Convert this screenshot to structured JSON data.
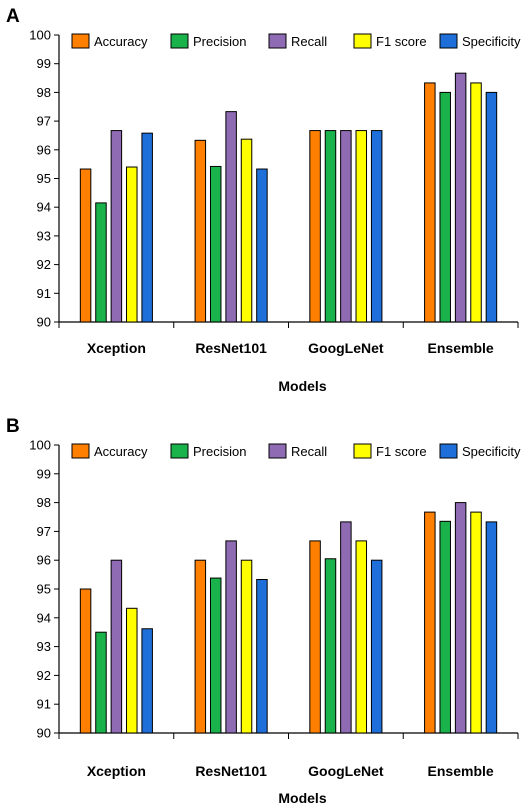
{
  "chart_data": [
    {
      "panel": "A",
      "type": "bar",
      "xlabel": "Models",
      "ylabel": "",
      "ylim": [
        90,
        100
      ],
      "yticks": [
        "90",
        "91",
        "92",
        "93",
        "94",
        "95",
        "96",
        "97",
        "98",
        "99",
        "100"
      ],
      "categories": [
        "Xception",
        "ResNet101",
        "GoogLeNet",
        "Ensemble"
      ],
      "legend_position": "top",
      "grid": false,
      "series": [
        {
          "name": "Accuracy",
          "color": "#ff7f00",
          "values": [
            95.33,
            96.33,
            96.67,
            98.33
          ]
        },
        {
          "name": "Precision",
          "color": "#19b24b",
          "values": [
            94.15,
            95.42,
            96.67,
            98.0
          ]
        },
        {
          "name": "Recall",
          "color": "#8e6bb3",
          "values": [
            96.67,
            97.33,
            96.67,
            98.67
          ]
        },
        {
          "name": "F1 score",
          "color": "#ffff00",
          "values": [
            95.4,
            96.37,
            96.67,
            98.33
          ]
        },
        {
          "name": "Specificity",
          "color": "#1e6fd9",
          "values": [
            96.58,
            95.33,
            96.67,
            98.0
          ]
        }
      ]
    },
    {
      "panel": "B",
      "type": "bar",
      "xlabel": "Models",
      "ylabel": "",
      "ylim": [
        90,
        100
      ],
      "yticks": [
        "90",
        "91",
        "92",
        "93",
        "94",
        "95",
        "96",
        "97",
        "98",
        "99",
        "100"
      ],
      "categories": [
        "Xception",
        "ResNet101",
        "GoogLeNet",
        "Ensemble"
      ],
      "legend_position": "top",
      "grid": false,
      "series": [
        {
          "name": "Accuracy",
          "color": "#ff7f00",
          "values": [
            95.0,
            96.0,
            96.67,
            97.67
          ]
        },
        {
          "name": "Precision",
          "color": "#19b24b",
          "values": [
            93.5,
            95.38,
            96.05,
            97.35
          ]
        },
        {
          "name": "Recall",
          "color": "#8e6bb3",
          "values": [
            96.0,
            96.67,
            97.33,
            98.0
          ]
        },
        {
          "name": "F1 score",
          "color": "#ffff00",
          "values": [
            94.33,
            96.0,
            96.67,
            97.67
          ]
        },
        {
          "name": "Specificity",
          "color": "#1e6fd9",
          "values": [
            93.62,
            95.33,
            96.0,
            97.33
          ]
        }
      ]
    }
  ]
}
